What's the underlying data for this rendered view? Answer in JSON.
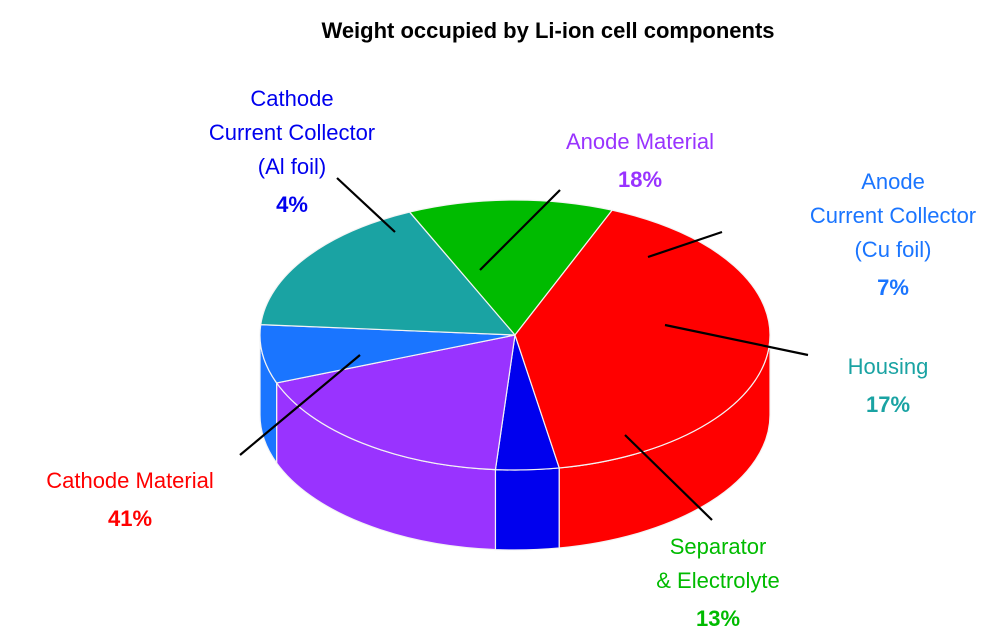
{
  "chart_data": {
    "type": "pie",
    "title": "Weight occupied by Li-ion cell components",
    "categories": [
      "Cathode\nCurrent Collector\n(Al foil)",
      "Anode Material",
      "Anode\nCurrent Collector\n(Cu foil)",
      "Housing",
      "Separator\n& Electrolyte",
      "Cathode Material"
    ],
    "values": [
      4,
      18,
      7,
      17,
      13,
      41
    ],
    "value_labels": [
      "4%",
      "18%",
      "7%",
      "17%",
      "13%",
      "41%"
    ],
    "colors": [
      "#0000ee",
      "#9933ff",
      "#1a75ff",
      "#1aa3a3",
      "#00bb00",
      "#ff0000"
    ]
  }
}
